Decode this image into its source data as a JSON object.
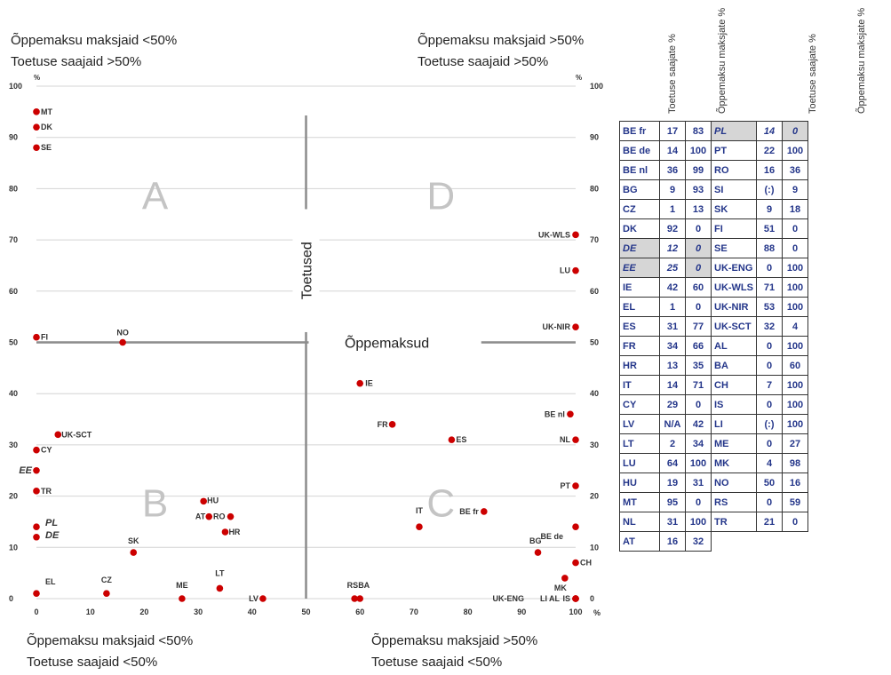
{
  "captions": {
    "top_left": [
      "Õppemaksu maksjaid <50%",
      "Toetuse saajaid >50%"
    ],
    "top_right": [
      "Õppemaksu maksjaid >50%",
      "Toetuse saajaid >50%"
    ],
    "bottom_left": [
      "Õppemaksu maksjaid <50%",
      "Toetuse saajaid <50%"
    ],
    "bottom_right": [
      "Õppemaksu maksjaid >50%",
      "Toetuse saajaid <50%"
    ]
  },
  "chart_data": {
    "type": "scatter",
    "xlabel": "Õppemaksud",
    "ylabel": "Toetused",
    "x_unit": "%",
    "y_unit": "%",
    "xlim": [
      0,
      100
    ],
    "ylim": [
      0,
      100
    ],
    "xticks": [
      "0",
      "10",
      "20",
      "30",
      "40",
      "50",
      "60",
      "70",
      "80",
      "90",
      "100"
    ],
    "yticks": [
      "0",
      "10",
      "20",
      "30",
      "40",
      "50",
      "60",
      "70",
      "80",
      "90",
      "100"
    ],
    "quadrant_labels": [
      "A",
      "B",
      "C",
      "D"
    ],
    "point_color": "#cc0000",
    "points": [
      {
        "label": "MT",
        "x": 0,
        "y": 95
      },
      {
        "label": "DK",
        "x": 0,
        "y": 92
      },
      {
        "label": "SE",
        "x": 0,
        "y": 88
      },
      {
        "label": "FI",
        "x": 0,
        "y": 51
      },
      {
        "label": "NO",
        "x": 16,
        "y": 50
      },
      {
        "label": "UK-SCT",
        "x": 4,
        "y": 32
      },
      {
        "label": "CY",
        "x": 0,
        "y": 29
      },
      {
        "label": "EE",
        "x": 0,
        "y": 25,
        "italic": true
      },
      {
        "label": "TR",
        "x": 0,
        "y": 21
      },
      {
        "label": "PL",
        "x": 0,
        "y": 14,
        "italic": true
      },
      {
        "label": "DE",
        "x": 0,
        "y": 12,
        "italic": true
      },
      {
        "label": "EL",
        "x": 0,
        "y": 1
      },
      {
        "label": "CZ",
        "x": 13,
        "y": 1
      },
      {
        "label": "SK",
        "x": 18,
        "y": 9
      },
      {
        "label": "HU",
        "x": 31,
        "y": 19
      },
      {
        "label": "AT",
        "x": 32,
        "y": 16
      },
      {
        "label": "RO",
        "x": 36,
        "y": 16
      },
      {
        "label": "HR",
        "x": 35,
        "y": 13
      },
      {
        "label": "ME",
        "x": 27,
        "y": 0
      },
      {
        "label": "LT",
        "x": 34,
        "y": 2
      },
      {
        "label": "LV",
        "x": 42,
        "y": 0
      },
      {
        "label": "RS",
        "x": 59,
        "y": 0
      },
      {
        "label": "BA",
        "x": 60,
        "y": 0
      },
      {
        "label": "IE",
        "x": 60,
        "y": 42
      },
      {
        "label": "FR",
        "x": 66,
        "y": 34
      },
      {
        "label": "ES",
        "x": 77,
        "y": 31
      },
      {
        "label": "IT",
        "x": 71,
        "y": 14
      },
      {
        "label": "BE fr",
        "x": 83,
        "y": 17
      },
      {
        "label": "UK-WLS",
        "x": 100,
        "y": 71
      },
      {
        "label": "LU",
        "x": 100,
        "y": 64
      },
      {
        "label": "UK-NIR",
        "x": 100,
        "y": 53
      },
      {
        "label": "BE nl",
        "x": 99,
        "y": 36
      },
      {
        "label": "NL",
        "x": 100,
        "y": 31
      },
      {
        "label": "PT",
        "x": 100,
        "y": 22
      },
      {
        "label": "BG",
        "x": 93,
        "y": 9
      },
      {
        "label": "BE de",
        "x": 100,
        "y": 14
      },
      {
        "label": "MK",
        "x": 98,
        "y": 4
      },
      {
        "label": "CH",
        "x": 100,
        "y": 7
      },
      {
        "label": "UK-ENG",
        "x": 100,
        "y": 0
      },
      {
        "label": "LI",
        "x": 100,
        "y": 0
      },
      {
        "label": "AL",
        "x": 100,
        "y": 0
      },
      {
        "label": "IS",
        "x": 100,
        "y": 0
      }
    ]
  },
  "table": {
    "headers": [
      "Toetuse saajate %",
      "Õppemaksu maksjate %",
      "Toetuse saajate %",
      "Õppemaksu maksjate %"
    ],
    "left": [
      {
        "code": "BE fr",
        "a": "17",
        "b": "83"
      },
      {
        "code": "BE de",
        "a": "14",
        "b": "100"
      },
      {
        "code": "BE nl",
        "a": "36",
        "b": "99"
      },
      {
        "code": "BG",
        "a": "9",
        "b": "93"
      },
      {
        "code": "CZ",
        "a": "1",
        "b": "13"
      },
      {
        "code": "DK",
        "a": "92",
        "b": "0"
      },
      {
        "code": "DE",
        "a": "12",
        "b": "0",
        "shade": true
      },
      {
        "code": "EE",
        "a": "25",
        "b": "0",
        "shade": true
      },
      {
        "code": "IE",
        "a": "42",
        "b": "60"
      },
      {
        "code": "EL",
        "a": "1",
        "b": "0"
      },
      {
        "code": "ES",
        "a": "31",
        "b": "77"
      },
      {
        "code": "FR",
        "a": "34",
        "b": "66"
      },
      {
        "code": "HR",
        "a": "13",
        "b": "35"
      },
      {
        "code": "IT",
        "a": "14",
        "b": "71"
      },
      {
        "code": "CY",
        "a": "29",
        "b": "0"
      },
      {
        "code": "LV",
        "a": "N/A",
        "b": "42"
      },
      {
        "code": "LT",
        "a": "2",
        "b": "34"
      },
      {
        "code": "LU",
        "a": "64",
        "b": "100"
      },
      {
        "code": "HU",
        "a": "19",
        "b": "31"
      },
      {
        "code": "MT",
        "a": "95",
        "b": "0"
      },
      {
        "code": "NL",
        "a": "31",
        "b": "100"
      },
      {
        "code": "AT",
        "a": "16",
        "b": "32"
      }
    ],
    "right": [
      {
        "code": "PL",
        "a": "14",
        "b": "0",
        "shade": true
      },
      {
        "code": "PT",
        "a": "22",
        "b": "100"
      },
      {
        "code": "RO",
        "a": "16",
        "b": "36"
      },
      {
        "code": "SI",
        "a": "(:)",
        "b": "9"
      },
      {
        "code": "SK",
        "a": "9",
        "b": "18"
      },
      {
        "code": "FI",
        "a": "51",
        "b": "0"
      },
      {
        "code": "SE",
        "a": "88",
        "b": "0"
      },
      {
        "code": "UK-ENG",
        "a": "0",
        "b": "100"
      },
      {
        "code": "UK-WLS",
        "a": "71",
        "b": "100"
      },
      {
        "code": "UK-NIR",
        "a": "53",
        "b": "100"
      },
      {
        "code": "UK-SCT",
        "a": "32",
        "b": "4"
      },
      {
        "code": "AL",
        "a": "0",
        "b": "100"
      },
      {
        "code": "BA",
        "a": "0",
        "b": "60"
      },
      {
        "code": "CH",
        "a": "7",
        "b": "100"
      },
      {
        "code": "IS",
        "a": "0",
        "b": "100"
      },
      {
        "code": "LI",
        "a": "(:)",
        "b": "100"
      },
      {
        "code": "ME",
        "a": "0",
        "b": "27"
      },
      {
        "code": "MK",
        "a": "4",
        "b": "98"
      },
      {
        "code": "NO",
        "a": "50",
        "b": "16"
      },
      {
        "code": "RS",
        "a": "0",
        "b": "59"
      },
      {
        "code": "TR",
        "a": "21",
        "b": "0"
      }
    ]
  }
}
